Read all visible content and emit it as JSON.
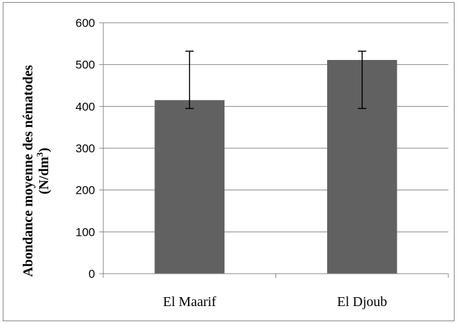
{
  "chart_data": {
    "type": "bar",
    "categories": [
      "El Maarif",
      "El Djoub"
    ],
    "series": [
      {
        "values": [
          415,
          511
        ],
        "error_low": [
          395,
          395
        ],
        "error_high": [
          532,
          532
        ]
      }
    ],
    "ylabel_line1": "Abondance moyenne des  nématodes",
    "ylabel_line2_main": "(N/dm",
    "ylabel_line2_sup": "3",
    "ylabel_line2_end": ")",
    "ylim": [
      0,
      600
    ],
    "yticks": [
      "0",
      "100",
      "200",
      "300",
      "400",
      "500",
      "600"
    ],
    "grid": true,
    "legend": "none",
    "colors": {
      "bar": "#616161",
      "grid": "#868686",
      "error": "#000000"
    }
  }
}
